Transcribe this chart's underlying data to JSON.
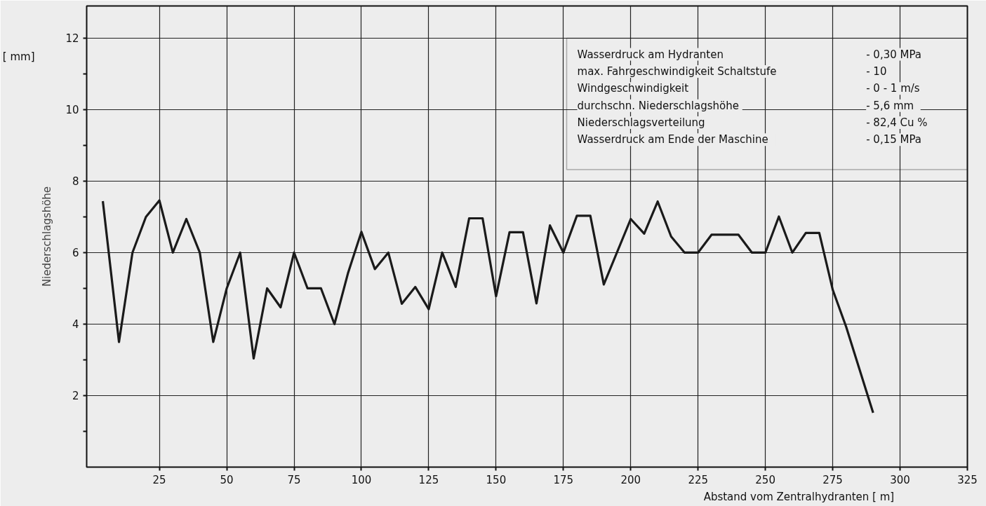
{
  "chart_data": {
    "type": "line",
    "ylabel": "Niederschlagshöhe",
    "xlabel": "Abstand vom Zentralhydranten    [ m]",
    "annotations": [
      "[ mm]",
      "Wasserdruck  am Hydranten",
      "-   0,30 MPa",
      "max. Fahrgeschwindigkeit    Schaltstufe",
      "-   10",
      "Windgeschwindigkeit",
      "-   0 - 1 m/s",
      "durchschn.  Niederschlagshöhe",
      "-   5,6 mm",
      "Niederschlagsverteilung",
      "-   82,4 Cu %",
      "Wasserdruck  am Ende  der Maschine",
      "-   0,15 MPa"
    ],
    "series": [
      {
        "color": "#1a1a1a",
        "x": [
          4,
          10,
          15,
          20,
          25,
          30,
          35,
          40,
          45,
          50,
          55,
          60,
          65,
          70,
          75,
          80,
          85,
          90,
          95,
          100,
          105,
          110,
          115,
          120,
          125,
          130,
          135,
          140,
          145,
          150,
          155,
          160,
          165,
          170,
          175,
          180,
          185,
          190,
          200,
          205,
          210,
          215,
          220,
          225,
          230,
          240,
          245,
          250,
          255,
          260,
          265,
          270,
          275,
          280,
          290
        ],
        "values": [
          7.44,
          3.5,
          6.0,
          7.0,
          7.46,
          6.0,
          6.94,
          6.0,
          3.5,
          5.0,
          6.0,
          3.04,
          5.0,
          4.47,
          6.0,
          5.0,
          5.0,
          4.0,
          5.42,
          6.58,
          5.54,
          6.0,
          4.57,
          5.04,
          4.42,
          6.0,
          5.04,
          6.96,
          6.96,
          4.78,
          6.57,
          6.57,
          4.58,
          6.76,
          6.0,
          7.03,
          7.03,
          5.11,
          6.94,
          6.53,
          7.43,
          6.45,
          6.0,
          6.0,
          6.5,
          6.5,
          6.0,
          6.0,
          7.01,
          6.0,
          6.55,
          6.55,
          4.96,
          3.92,
          1.52
        ]
      }
    ],
    "xlim": [
      -2,
      325
    ],
    "ylim": [
      0,
      12.9
    ],
    "xticks": [
      25,
      50,
      75,
      100,
      125,
      150,
      175,
      200,
      225,
      250,
      275,
      300,
      325
    ],
    "yticks": [
      {
        "value": 1,
        "label": null
      },
      2,
      {
        "value": 3,
        "label": null
      },
      4,
      {
        "value": 5,
        "label": null
      },
      6,
      {
        "value": 7,
        "label": null
      },
      8,
      {
        "value": 9,
        "label": null
      },
      10,
      {
        "value": 11,
        "label": null
      },
      12
    ],
    "grid": true,
    "marker": "none",
    "line_style": "solid"
  }
}
